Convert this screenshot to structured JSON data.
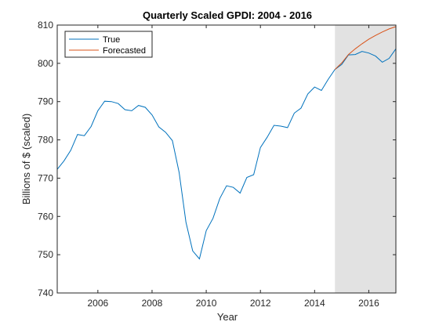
{
  "chart_data": {
    "type": "line",
    "title": "Quarterly Scaled GPDI: 2004 - 2016",
    "xlabel": "Year",
    "ylabel": "Billions of $ (scaled)",
    "xlim": [
      2004.5,
      2017.0
    ],
    "ylim": [
      740,
      810
    ],
    "xticks": [
      2006,
      2008,
      2010,
      2012,
      2014,
      2016
    ],
    "yticks": [
      740,
      750,
      760,
      770,
      780,
      790,
      800,
      810
    ],
    "grid": false,
    "legend": "top-left",
    "forecast_region": [
      2014.75,
      2017.0
    ],
    "series": [
      {
        "name": "True",
        "color": "#0072BD",
        "x": [
          2004.5,
          2004.75,
          2005.0,
          2005.25,
          2005.5,
          2005.75,
          2006.0,
          2006.25,
          2006.5,
          2006.75,
          2007.0,
          2007.25,
          2007.5,
          2007.75,
          2008.0,
          2008.25,
          2008.5,
          2008.75,
          2009.0,
          2009.25,
          2009.5,
          2009.75,
          2010.0,
          2010.25,
          2010.5,
          2010.75,
          2011.0,
          2011.25,
          2011.5,
          2011.75,
          2012.0,
          2012.25,
          2012.5,
          2012.75,
          2013.0,
          2013.25,
          2013.5,
          2013.75,
          2014.0,
          2014.25,
          2014.5,
          2014.75,
          2015.0,
          2015.25,
          2015.5,
          2015.75,
          2016.0,
          2016.25,
          2016.5,
          2016.75,
          2017.0
        ],
        "values": [
          772.3,
          774.5,
          777.3,
          781.4,
          781.1,
          783.5,
          787.6,
          790.1,
          790.0,
          789.5,
          787.9,
          787.6,
          789.0,
          788.5,
          786.5,
          783.4,
          782.0,
          779.8,
          771.5,
          758.5,
          751.0,
          748.9,
          756.3,
          759.5,
          764.7,
          768.0,
          767.6,
          766.1,
          770.2,
          770.9,
          778.0,
          780.7,
          783.8,
          783.6,
          783.2,
          787.0,
          788.3,
          792.0,
          793.8,
          792.9,
          795.8,
          798.4,
          799.7,
          802.2,
          802.3,
          803.1,
          802.7,
          801.9,
          800.3,
          801.3,
          803.8
        ]
      },
      {
        "name": "Forecasted",
        "color": "#D95319",
        "x": [
          2014.75,
          2015.0,
          2015.25,
          2015.5,
          2015.75,
          2016.0,
          2016.25,
          2016.5,
          2016.75,
          2017.0
        ],
        "values": [
          798.4,
          800.1,
          802.3,
          803.8,
          805.1,
          806.3,
          807.3,
          808.2,
          809.0,
          809.6
        ]
      }
    ]
  }
}
